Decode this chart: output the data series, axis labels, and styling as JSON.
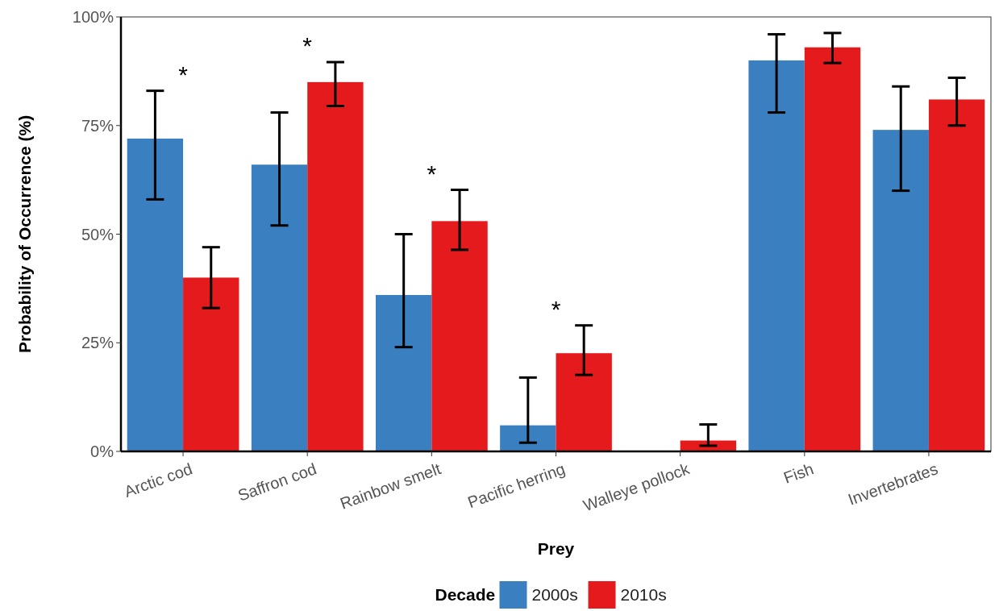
{
  "chart_data": {
    "type": "bar",
    "xlabel": "Prey",
    "ylabel": "Probability of Occurrence (%)",
    "legend_title": "Decade",
    "legend": "bottom",
    "grid": false,
    "categories": [
      "Arctic cod",
      "Saffron cod",
      "Rainbow smelt",
      "Pacific herring",
      "Walleye pollock",
      "Fish",
      "Invertebrates"
    ],
    "ylim": [
      0,
      100
    ],
    "yticks": [
      {
        "value": 0,
        "label": "0%"
      },
      {
        "value": 25,
        "label": "25%"
      },
      {
        "value": 50,
        "label": "50%"
      },
      {
        "value": 75,
        "label": "75%"
      },
      {
        "value": 100,
        "label": "100%"
      }
    ],
    "series": [
      {
        "name": "2000s",
        "color": "#3a7fc0",
        "values": [
          72,
          66,
          36,
          6,
          0,
          90,
          74
        ],
        "errors": [
          [
            58,
            83
          ],
          [
            52,
            78
          ],
          [
            24,
            50
          ],
          [
            2,
            17
          ],
          null,
          [
            78,
            96
          ],
          [
            60,
            84
          ]
        ]
      },
      {
        "name": "2010s",
        "color": "#e41a1c",
        "values": [
          40,
          85,
          53,
          22.6,
          2.5,
          93,
          81
        ],
        "errors": [
          [
            33,
            47
          ],
          [
            79.5,
            89.6
          ],
          [
            46.4,
            60.2
          ],
          [
            17.6,
            29
          ],
          [
            1.3,
            6.2
          ],
          [
            89.4,
            96.3
          ],
          [
            75,
            86
          ]
        ]
      }
    ],
    "annotations": [
      "*",
      "*",
      "*",
      "*"
    ]
  }
}
